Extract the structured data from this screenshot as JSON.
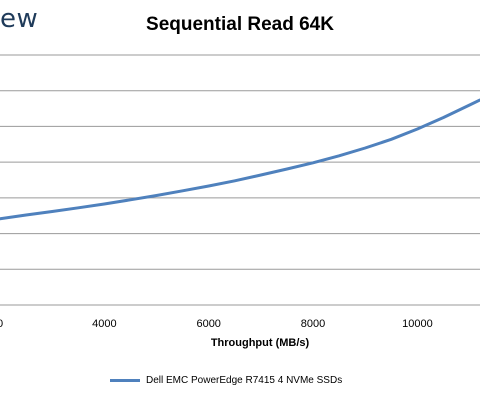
{
  "branding": {
    "logo_text": "ew"
  },
  "chart_data": {
    "type": "line",
    "title": "Sequential Read 64K",
    "xlabel": "Throughput (MB/s)",
    "ylabel": "",
    "x_ticks": [
      "0",
      "4000",
      "6000",
      "8000",
      "10000"
    ],
    "xlim": [
      2000,
      11200
    ],
    "ylim": [
      0,
      1
    ],
    "grid": true,
    "legend_position": "bottom",
    "series": [
      {
        "name": "Dell EMC PowerEdge R7415 4 NVMe SSDs",
        "color": "#4f81bd",
        "x": [
          2000,
          2500,
          3000,
          3500,
          4000,
          4500,
          5000,
          5500,
          6000,
          6500,
          7000,
          7500,
          8000,
          8500,
          9000,
          9500,
          10000,
          10500,
          11000,
          11200
        ],
        "y": [
          0.345,
          0.36,
          0.374,
          0.389,
          0.404,
          0.421,
          0.438,
          0.457,
          0.476,
          0.497,
          0.52,
          0.544,
          0.569,
          0.597,
          0.628,
          0.663,
          0.704,
          0.75,
          0.8,
          0.82
        ]
      }
    ]
  }
}
